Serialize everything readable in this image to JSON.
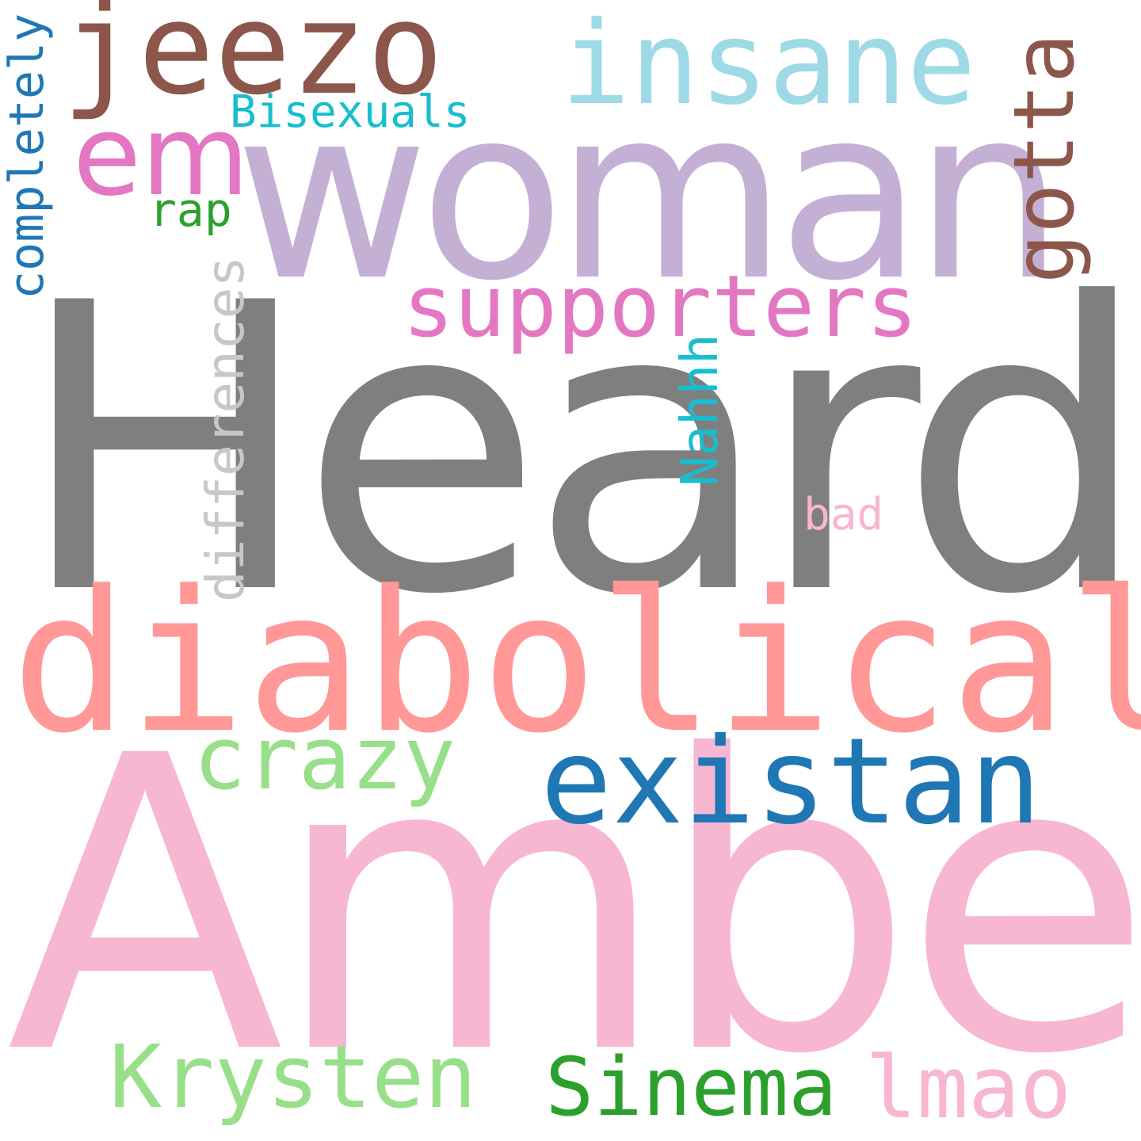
{
  "words": {
    "heard": {
      "text": "Heard",
      "color": "#7f7f7f"
    },
    "amber": {
      "text": "Amber",
      "color": "#f7b6d2"
    },
    "woman": {
      "text": "woman",
      "color": "#c5b0d5"
    },
    "diabolical": {
      "text": "diabolical",
      "color": "#ff9896"
    },
    "jeezo": {
      "text": "jeezo",
      "color": "#8c564b"
    },
    "insane": {
      "text": "insane",
      "color": "#9edae5"
    },
    "em": {
      "text": "em",
      "color": "#e377c2"
    },
    "existan": {
      "text": "existan",
      "color": "#1f77b4"
    },
    "supporters": {
      "text": "supporters",
      "color": "#e377c2"
    },
    "gotta": {
      "text": "gotta",
      "color": "#8c564b"
    },
    "crazy": {
      "text": "crazy",
      "color": "#98df8a"
    },
    "krysten": {
      "text": "Krysten",
      "color": "#98df8a"
    },
    "sinema": {
      "text": "Sinema",
      "color": "#2ca02c"
    },
    "lmao": {
      "text": "lmao",
      "color": "#f7b6d2"
    },
    "completely": {
      "text": "completely",
      "color": "#1f77b4"
    },
    "differences": {
      "text": "differences",
      "color": "#c7c7c7"
    },
    "bisexuals": {
      "text": "Bisexuals",
      "color": "#17becf"
    },
    "nahhh": {
      "text": "Nahhh",
      "color": "#17becf"
    },
    "rap": {
      "text": "rap",
      "color": "#2ca02c"
    },
    "bad": {
      "text": "bad",
      "color": "#f7b6d2"
    }
  }
}
